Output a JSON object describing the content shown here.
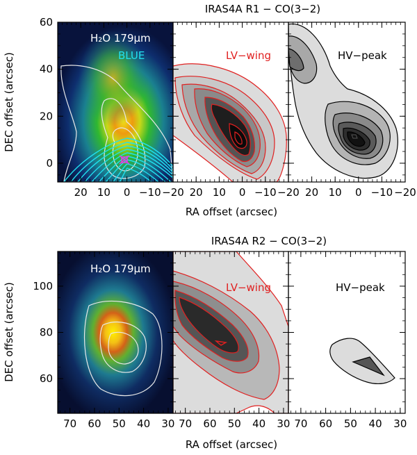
{
  "chart_data": [
    {
      "type": "contour",
      "title": "IRAS4A R1 − CO(3−2)",
      "xlabel": "RA offset (arcsec)",
      "ylabel": "DEC offset (arcsec)",
      "xlim": [
        30,
        -20
      ],
      "ylim": [
        -8,
        60
      ],
      "x_ticks": [
        20,
        10,
        0,
        -10,
        -20
      ],
      "x_tick_labels": [
        "20",
        "10",
        "0",
        "−10",
        "−20"
      ],
      "y_ticks": [
        0,
        20,
        40,
        60
      ],
      "y_tick_labels": [
        "0",
        "20",
        "40",
        "60"
      ],
      "panels": [
        {
          "label": "H₂O 179μm",
          "sublabel": "BLUE",
          "label_color": "#ffffff",
          "sublabel_color": "#22e0f0"
        },
        {
          "label": "LV−wing",
          "label_color": "#e02020",
          "peak_x": 0,
          "peak_y": 12,
          "contour_levels": 7
        },
        {
          "label": "HV−peak",
          "label_color": "#000000",
          "peaks": [
            {
              "x": 22,
              "y": 45
            },
            {
              "x": 0,
              "y": 12
            }
          ],
          "contour_levels": 6
        }
      ]
    },
    {
      "type": "contour",
      "title": "IRAS4A R2 − CO(3−2)",
      "xlabel": "RA offset (arcsec)",
      "ylabel": "DEC offset (arcsec)",
      "xlim": [
        75,
        28
      ],
      "ylim": [
        45,
        115
      ],
      "x_ticks": [
        70,
        60,
        50,
        40,
        30
      ],
      "x_tick_labels": [
        "70",
        "60",
        "50",
        "40",
        "30"
      ],
      "y_ticks": [
        60,
        80,
        100
      ],
      "y_tick_labels": [
        "60",
        "80",
        "100"
      ],
      "panels": [
        {
          "label": "H₂O 179μm",
          "label_color": "#ffffff",
          "peak_x": 50,
          "peak_y": 75
        },
        {
          "label": "LV−wing",
          "label_color": "#e02020",
          "peak_x": 46,
          "peak_y": 76,
          "contour_levels": 5
        },
        {
          "label": "HV−peak",
          "label_color": "#000000",
          "peak_x": 45,
          "peak_y": 68,
          "contour_levels": 2
        }
      ]
    }
  ]
}
